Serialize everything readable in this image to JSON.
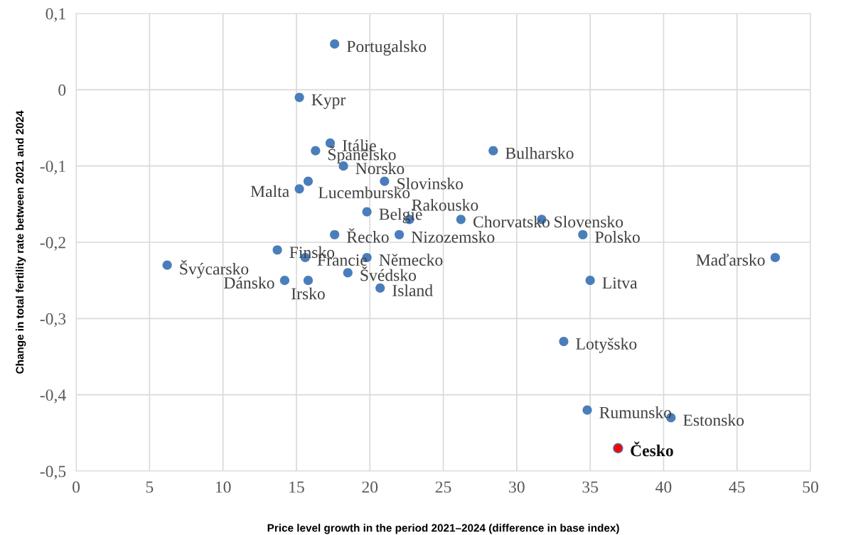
{
  "chart_data": {
    "type": "scatter",
    "xlabel": "Price level growth in the period 2021–2024 (difference in base index)",
    "ylabel": "Change in total fertility rate between 2021 and 2024",
    "series": [
      {
        "color": "#4a7ebb",
        "x": [
          17.6,
          15.2,
          17.3,
          16.3,
          18.2,
          15.8,
          15.2,
          21.0,
          19.8,
          22.7,
          26.2,
          31.7,
          34.5,
          17.6,
          22.0,
          28.4,
          13.7,
          15.6,
          19.8,
          6.2,
          18.5,
          14.2,
          15.8,
          20.7,
          35.0,
          47.6,
          33.2,
          34.8,
          40.5
        ],
        "values": [
          0.06,
          -0.01,
          -0.07,
          -0.08,
          -0.1,
          -0.12,
          -0.13,
          -0.12,
          -0.16,
          -0.17,
          -0.17,
          -0.17,
          -0.19,
          -0.19,
          -0.19,
          -0.08,
          -0.21,
          -0.22,
          -0.22,
          -0.23,
          -0.24,
          -0.25,
          -0.25,
          -0.26,
          -0.25,
          -0.22,
          -0.33,
          -0.42,
          -0.43
        ]
      },
      {
        "color": "#ff0000",
        "x": [
          36.9
        ],
        "values": [
          -0.47
        ]
      }
    ],
    "annotations": [
      {
        "text": "Portugalsko",
        "x": 17.6,
        "y": 0.06
      },
      {
        "text": "Kypr",
        "x": 15.2,
        "y": -0.01
      },
      {
        "text": "Itálie",
        "x": 17.3,
        "y": -0.07
      },
      {
        "text": "Španělsko",
        "x": 16.3,
        "y": -0.08
      },
      {
        "text": "Norsko",
        "x": 18.2,
        "y": -0.1
      },
      {
        "text": "Lucembursko",
        "x": 15.8,
        "y": -0.12
      },
      {
        "text": "Malta",
        "x": 15.2,
        "y": -0.13
      },
      {
        "text": "Slovinsko",
        "x": 21.0,
        "y": -0.12
      },
      {
        "text": "Belgie",
        "x": 19.8,
        "y": -0.16
      },
      {
        "text": "Rakousko",
        "x": 22.7,
        "y": -0.17
      },
      {
        "text": "Chorvatsko",
        "x": 26.2,
        "y": -0.17
      },
      {
        "text": "Slovensko",
        "x": 31.7,
        "y": -0.17
      },
      {
        "text": "Polsko",
        "x": 34.5,
        "y": -0.19
      },
      {
        "text": "Řecko",
        "x": 17.6,
        "y": -0.19
      },
      {
        "text": "Nizozemsko",
        "x": 22.0,
        "y": -0.19
      },
      {
        "text": "Bulharsko",
        "x": 28.4,
        "y": -0.08
      },
      {
        "text": "Finsko",
        "x": 13.7,
        "y": -0.21
      },
      {
        "text": "Francie",
        "x": 15.6,
        "y": -0.22
      },
      {
        "text": "Německo",
        "x": 19.8,
        "y": -0.22
      },
      {
        "text": "Švýcarsko",
        "x": 6.2,
        "y": -0.23
      },
      {
        "text": "Švédsko",
        "x": 18.5,
        "y": -0.24
      },
      {
        "text": "Dánsko",
        "x": 14.2,
        "y": -0.25
      },
      {
        "text": "Irsko",
        "x": 15.8,
        "y": -0.25
      },
      {
        "text": "Island",
        "x": 20.7,
        "y": -0.26
      },
      {
        "text": "Litva",
        "x": 35.0,
        "y": -0.25
      },
      {
        "text": "Maďarsko",
        "x": 47.6,
        "y": -0.22
      },
      {
        "text": "Lotyšsko",
        "x": 33.2,
        "y": -0.33
      },
      {
        "text": "Rumunsko",
        "x": 34.8,
        "y": -0.42
      },
      {
        "text": "Estonsko",
        "x": 40.5,
        "y": -0.43
      },
      {
        "text": "Česko",
        "x": 36.9,
        "y": -0.47
      }
    ],
    "xlim": [
      0,
      50
    ],
    "xticks": [
      0,
      5,
      10,
      15,
      20,
      25,
      30,
      35,
      40,
      45,
      50
    ],
    "ylim": [
      -0.5,
      0.1
    ],
    "yticks": [
      {
        "value": -0.5,
        "label": "-0,5"
      },
      {
        "value": -0.4,
        "label": "-0,4"
      },
      {
        "value": -0.3,
        "label": "-0,3"
      },
      {
        "value": -0.2,
        "label": "-0,2"
      },
      {
        "value": -0.1,
        "label": "-0,1"
      },
      {
        "value": 0,
        "label": "0"
      },
      {
        "value": 0.1,
        "label": "0,1"
      }
    ],
    "grid": true,
    "marker": "circle",
    "legend": false
  }
}
